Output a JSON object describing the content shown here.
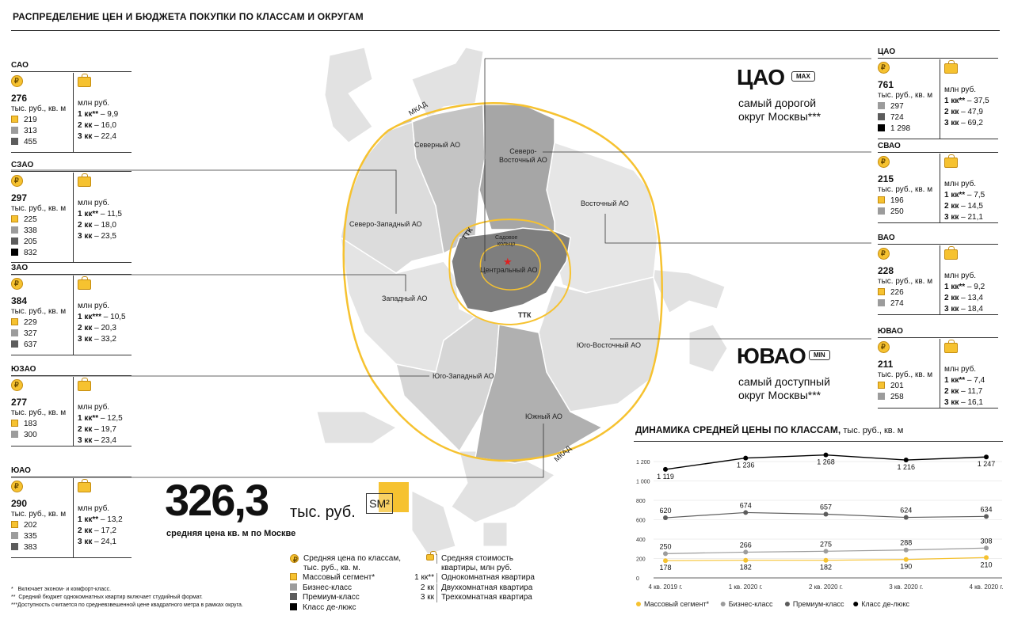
{
  "header": {
    "title": "РАСПРЕДЕЛЕНИЕ ЦЕН И БЮДЖЕТА ПОКУПКИ ПО КЛАССАМ И ОКРУГАМ"
  },
  "units": {
    "price": "тыс. руб., кв. м",
    "budget": "млн руб."
  },
  "districts_left": [
    {
      "name": "САО",
      "avg": "276",
      "vals": [
        {
          "c": "ydot",
          "v": "219"
        },
        {
          "c": "gdot",
          "v": "313"
        },
        {
          "c": "ddot",
          "v": "455"
        }
      ],
      "budget": [
        {
          "k": "1 кк**",
          "v": " – 9,9"
        },
        {
          "k": "2 кк",
          "v": " – 16,0"
        },
        {
          "k": "3 кк",
          "v": " – 22,4"
        }
      ]
    },
    {
      "name": "СЗАО",
      "avg": "297",
      "vals": [
        {
          "c": "ydot",
          "v": "225"
        },
        {
          "c": "gdot",
          "v": "338"
        },
        {
          "c": "ddot",
          "v": "205"
        },
        {
          "c": "kdot",
          "v": "832"
        }
      ],
      "budget": [
        {
          "k": "1 кк**",
          "v": " – 11,5"
        },
        {
          "k": "2 кк",
          "v": " – 18,0"
        },
        {
          "k": "3 кк",
          "v": " – 23,5"
        }
      ]
    },
    {
      "name": "ЗАО",
      "avg": "384",
      "vals": [
        {
          "c": "ydot",
          "v": "229"
        },
        {
          "c": "gdot",
          "v": "327"
        },
        {
          "c": "ddot",
          "v": "637"
        }
      ],
      "budget": [
        {
          "k": "1 кк***",
          "v": " – 10,5"
        },
        {
          "k": "2 кк",
          "v": " – 20,3"
        },
        {
          "k": "3 кк",
          "v": " – 33,2"
        }
      ]
    },
    {
      "name": "ЮЗАО",
      "avg": "277",
      "vals": [
        {
          "c": "ydot",
          "v": "183"
        },
        {
          "c": "gdot",
          "v": "300"
        }
      ],
      "budget": [
        {
          "k": "1 кк**",
          "v": " – 12,5"
        },
        {
          "k": "2 кк",
          "v": " – 19,7"
        },
        {
          "k": "3 кк",
          "v": " – 23,4"
        }
      ]
    },
    {
      "name": "ЮАО",
      "avg": "290",
      "vals": [
        {
          "c": "ydot",
          "v": "202"
        },
        {
          "c": "gdot",
          "v": "335"
        },
        {
          "c": "ddot",
          "v": "383"
        }
      ],
      "budget": [
        {
          "k": "1 кк**",
          "v": " – 13,2"
        },
        {
          "k": "2 кк",
          "v": " – 17,2"
        },
        {
          "k": "3 кк",
          "v": " – 24,1"
        }
      ]
    }
  ],
  "districts_right": [
    {
      "name": "ЦАО",
      "avg": "761",
      "vals": [
        {
          "c": "gdot",
          "v": "297"
        },
        {
          "c": "ddot",
          "v": "724"
        },
        {
          "c": "kdot",
          "v": "1 298"
        }
      ],
      "budget": [
        {
          "k": "1 кк**",
          "v": " – 37,5"
        },
        {
          "k": "2 кк",
          "v": " – 47,9"
        },
        {
          "k": "3 кк",
          "v": " – 69,2"
        }
      ]
    },
    {
      "name": "СВАО",
      "avg": "215",
      "vals": [
        {
          "c": "ydot",
          "v": "196"
        },
        {
          "c": "gdot",
          "v": "250"
        }
      ],
      "budget": [
        {
          "k": "1 кк**",
          "v": " – 7,5"
        },
        {
          "k": "2 кк",
          "v": " – 14,5"
        },
        {
          "k": "3 кк",
          "v": " – 21,1"
        }
      ]
    },
    {
      "name": "ВАО",
      "avg": "228",
      "vals": [
        {
          "c": "ydot",
          "v": "226"
        },
        {
          "c": "gdot",
          "v": "274"
        }
      ],
      "budget": [
        {
          "k": "1 кк**",
          "v": " – 9,2"
        },
        {
          "k": "2 кк",
          "v": " – 13,4"
        },
        {
          "k": "3 кк",
          "v": " – 18,4"
        }
      ]
    },
    {
      "name": "ЮВАО",
      "avg": "211",
      "vals": [
        {
          "c": "ydot",
          "v": "201"
        },
        {
          "c": "gdot",
          "v": "258"
        }
      ],
      "budget": [
        {
          "k": "1 кк**",
          "v": " – 7,4"
        },
        {
          "k": "2 кк",
          "v": " – 11,7"
        },
        {
          "k": "3 кк",
          "v": " – 16,1"
        }
      ]
    }
  ],
  "highlights": {
    "max": {
      "name": "ЦАО",
      "tag": "MAX",
      "line1": "самый дорогой",
      "line2": "округ Москвы***"
    },
    "min": {
      "name": "ЮВАО",
      "tag": "MIN",
      "line1": "самый доступный",
      "line2": "округ Москвы***"
    }
  },
  "map": {
    "labels": {
      "sao": "Северный АО",
      "svao": "Северо-\nВосточный АО",
      "szao": "Северо-Западный АО",
      "vao": "Восточный АО",
      "zao": "Западный АО",
      "cao": "Центральный АО",
      "uvao": "Юго-Восточный АО",
      "uzao": "Юго-Западный АО",
      "uao": "Южный АО",
      "sad": "Садовое\nкольцо",
      "ttk1": "ТТК",
      "ttk2": "ТТК",
      "mkad1": "МКАД",
      "mkad2": "МКАД"
    }
  },
  "summary": {
    "value": "326,3",
    "unit": "тыс. руб.",
    "caption": "средняя цена кв. м по Москве",
    "logo": "SM²"
  },
  "legend": {
    "left": [
      {
        "icon": "coin",
        "text": "Средняя цена по классам,\nтыс. руб., кв. м."
      },
      {
        "icon": "ydot",
        "text": "Массовый сегмент*"
      },
      {
        "icon": "gdot",
        "text": "Бизнес-класс"
      },
      {
        "icon": "ddot",
        "text": "Премиум-класс"
      },
      {
        "icon": "kdot",
        "text": "Класс де-люкс"
      }
    ],
    "right": [
      {
        "k": "",
        "text": "Средняя стоимость\nквартиры, млн руб."
      },
      {
        "k": "1 кк**",
        "text": "Однокомнатная квартира"
      },
      {
        "k": "2 кк",
        "text": "Двухкомнатная квартира"
      },
      {
        "k": "3 кк",
        "text": "Трехкомнатная квартира"
      }
    ]
  },
  "footnotes": [
    "*   Включает эконом- и комфорт-класс.",
    "**  Средний бюджет однокомнатных квартир включает студийный формат.",
    "***Доступность считается по средневзвешенной цене квадратного метра в рамках округа."
  ],
  "chart_title": {
    "main": "ДИНАМИКА СРЕДНЕЙ ЦЕНЫ ПО КЛАССАМ,",
    "unit": " тыс. руб., кв. м"
  },
  "chart_data": {
    "type": "line",
    "categories": [
      "4 кв. 2019 г.",
      "1 кв. 2020 г.",
      "2 кв. 2020 г.",
      "3 кв. 2020 г.",
      "4 кв. 2020 г."
    ],
    "yticks": [
      "1 200",
      "1 000",
      "800",
      "600",
      "400",
      "200",
      "0"
    ],
    "ylim": [
      0,
      1200
    ],
    "series": [
      {
        "name": "Массовый сегмент*",
        "color": "#f6c230",
        "values": [
          178,
          182,
          182,
          190,
          210
        ],
        "labels": [
          "178",
          "182",
          "182",
          "190",
          "210"
        ]
      },
      {
        "name": "Бизнес-класс",
        "color": "#9c9c9c",
        "values": [
          250,
          266,
          275,
          288,
          308
        ],
        "labels": [
          "250",
          "266",
          "275",
          "288",
          "308"
        ]
      },
      {
        "name": "Премиум-класс",
        "color": "#5c5c5c",
        "values": [
          620,
          674,
          657,
          624,
          634
        ],
        "labels": [
          "620",
          "674",
          "657",
          "624",
          "634"
        ]
      },
      {
        "name": "Класс де-люкс",
        "color": "#000000",
        "values": [
          1119,
          1236,
          1268,
          1216,
          1247
        ],
        "labels": [
          "1 119",
          "1 236",
          "1 268",
          "1 216",
          "1 247"
        ]
      }
    ]
  }
}
